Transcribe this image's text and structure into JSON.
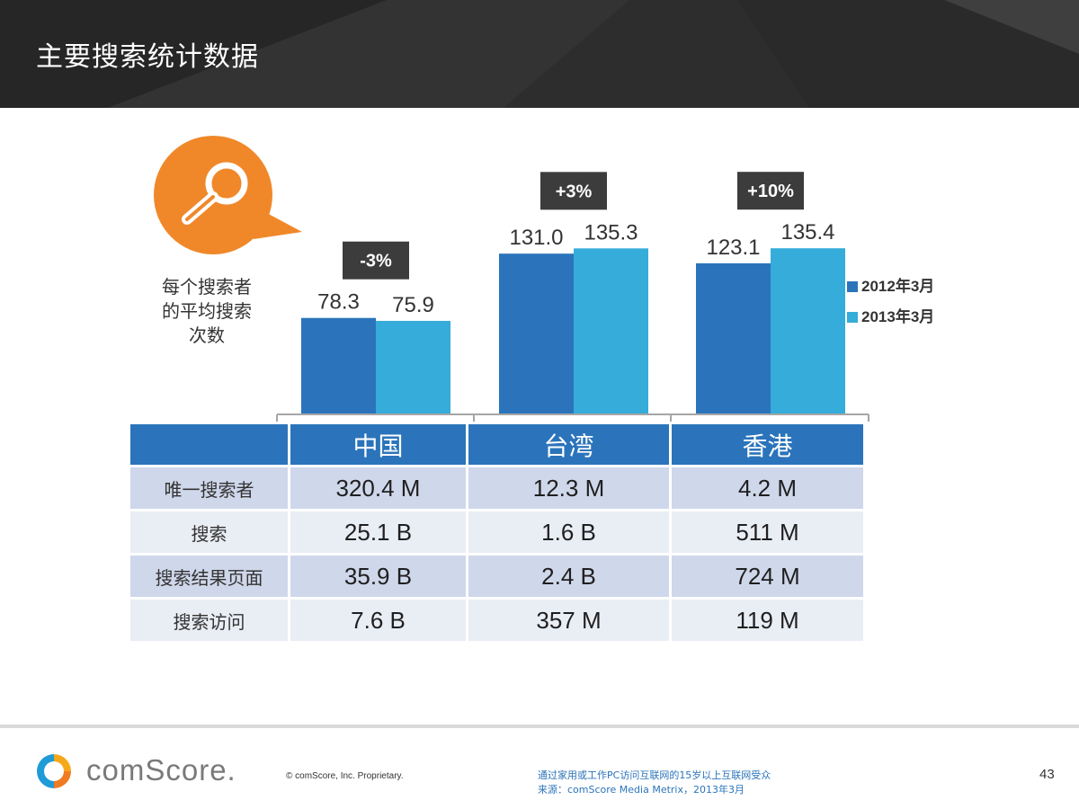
{
  "slide": {
    "title": "主要搜索统计数据"
  },
  "metric_label": "每个搜索者\n的平均搜索\n次数",
  "colors": {
    "series2012": "#2b74bb",
    "series2013": "#35acd9",
    "badge": "#3c3c3c",
    "header": "#2d2d2d",
    "orange": "#f0882a"
  },
  "icons": {
    "search": "magnifier-speech-bubble-icon"
  },
  "chart_data": {
    "type": "bar",
    "categories": [
      "中国",
      "台湾",
      "香港"
    ],
    "series": [
      {
        "name": "2012年3月",
        "values": [
          78.3,
          131.0,
          123.1
        ]
      },
      {
        "name": "2013年3月",
        "values": [
          75.9,
          135.3,
          135.4
        ]
      }
    ],
    "value_labels": [
      [
        "78.3",
        "75.9"
      ],
      [
        "131.0",
        "135.3"
      ],
      [
        "123.1",
        "135.4"
      ]
    ],
    "change_labels": [
      "-3%",
      "+3%",
      "+10%"
    ],
    "ylim": [
      0,
      150
    ],
    "legend_position": "right",
    "grid": false
  },
  "table": {
    "headers": [
      "",
      "中国",
      "台湾",
      "香港"
    ],
    "rows": [
      {
        "label": "唯一搜索者",
        "values": [
          "320.4 M",
          "12.3 M",
          "4.2 M"
        ]
      },
      {
        "label": "搜索",
        "values": [
          "25.1 B",
          "1.6 B",
          "511 M"
        ]
      },
      {
        "label": "搜索结果页面",
        "values": [
          "35.9 B",
          "2.4 B",
          "724 M"
        ]
      },
      {
        "label": "搜索访问",
        "values": [
          "7.6 B",
          "357 M",
          "119 M"
        ]
      }
    ]
  },
  "footer": {
    "logo_text": "comScore.",
    "copyright": "© comScore, Inc.    Proprietary.",
    "note_line1": "通过家用或工作PC访问互联网的15岁以上互联网受众",
    "note_line2": "来源：comScore Media Metrix，2013年3月",
    "page_number": "43"
  }
}
